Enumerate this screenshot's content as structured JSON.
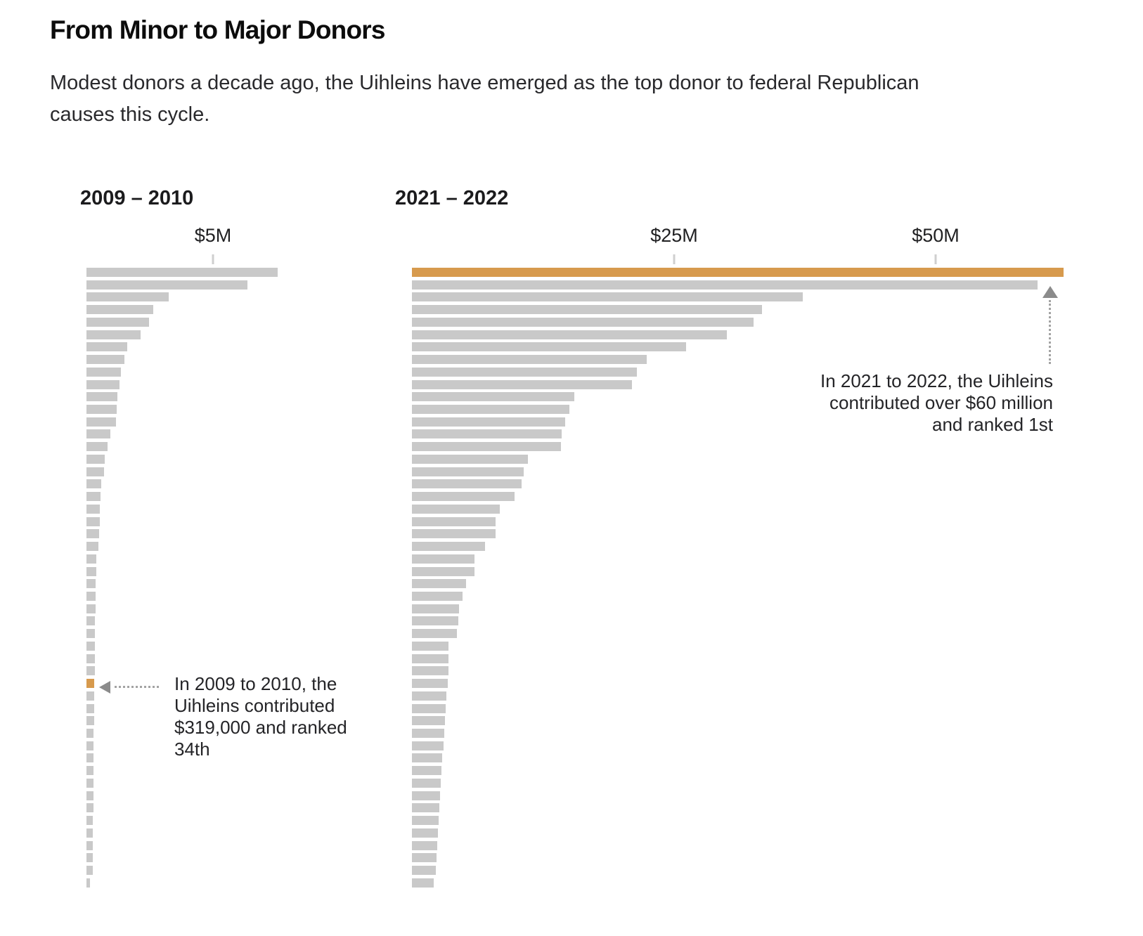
{
  "header": {
    "title": "From Minor to Major Donors",
    "subtitle_line1": "Modest donors a decade ago, the Uihleins have emerged as the top donor to federal Republican",
    "subtitle_line2": "causes this cycle."
  },
  "colors": {
    "bar": "#c9c9c9",
    "highlight": "#d79a4d",
    "arrow": "#8b8b8b",
    "dotted_line": "#a3a3a3"
  },
  "chart_data": [
    {
      "type": "bar",
      "title": "2009 – 2010",
      "orientation": "horizontal",
      "unit": "USD millions",
      "xlim": [
        0,
        8.5
      ],
      "grid": false,
      "axis_ticks": [
        {
          "label": "$5M",
          "value": 5
        }
      ],
      "highlight_rank": 34,
      "highlight_value_label": "$319,000",
      "annotation": {
        "lines": [
          "In 2009 to 2010, the",
          "Uihleins contributed",
          "$319,000 and ranked",
          "34th"
        ]
      },
      "values": [
        7.56,
        6.36,
        3.25,
        2.64,
        2.47,
        2.14,
        1.61,
        1.5,
        1.36,
        1.31,
        1.22,
        1.19,
        1.17,
        0.94,
        0.83,
        0.72,
        0.69,
        0.58,
        0.56,
        0.53,
        0.52,
        0.5,
        0.47,
        0.39,
        0.38,
        0.37,
        0.36,
        0.35,
        0.345,
        0.34,
        0.335,
        0.33,
        0.325,
        0.319,
        0.31,
        0.3,
        0.295,
        0.29,
        0.285,
        0.28,
        0.275,
        0.27,
        0.27,
        0.265,
        0.26,
        0.26,
        0.255,
        0.25,
        0.25,
        0.14
      ]
    },
    {
      "type": "bar",
      "title": "2021 – 2022",
      "orientation": "horizontal",
      "unit": "USD millions",
      "xlim": [
        0,
        63
      ],
      "grid": false,
      "axis_ticks": [
        {
          "label": "$25M",
          "value": 25
        },
        {
          "label": "$50M",
          "value": 50
        }
      ],
      "highlight_rank": 1,
      "highlight_value_label": "over $60 million",
      "annotation": {
        "lines": [
          "In 2021 to 2022, the Uihleins",
          "contributed over $60 million",
          "and ranked 1st"
        ]
      },
      "values": [
        62.2,
        59.7,
        37.3,
        33.4,
        32.6,
        30.1,
        26.2,
        22.4,
        21.5,
        21.0,
        15.5,
        15.0,
        14.6,
        14.3,
        14.2,
        11.1,
        10.7,
        10.5,
        9.8,
        8.4,
        8.0,
        8.0,
        7.0,
        6.0,
        6.0,
        5.2,
        4.8,
        4.5,
        4.4,
        4.3,
        3.5,
        3.5,
        3.5,
        3.4,
        3.3,
        3.2,
        3.15,
        3.1,
        3.0,
        2.9,
        2.85,
        2.75,
        2.7,
        2.6,
        2.55,
        2.45,
        2.4,
        2.35,
        2.3,
        2.1
      ]
    }
  ]
}
